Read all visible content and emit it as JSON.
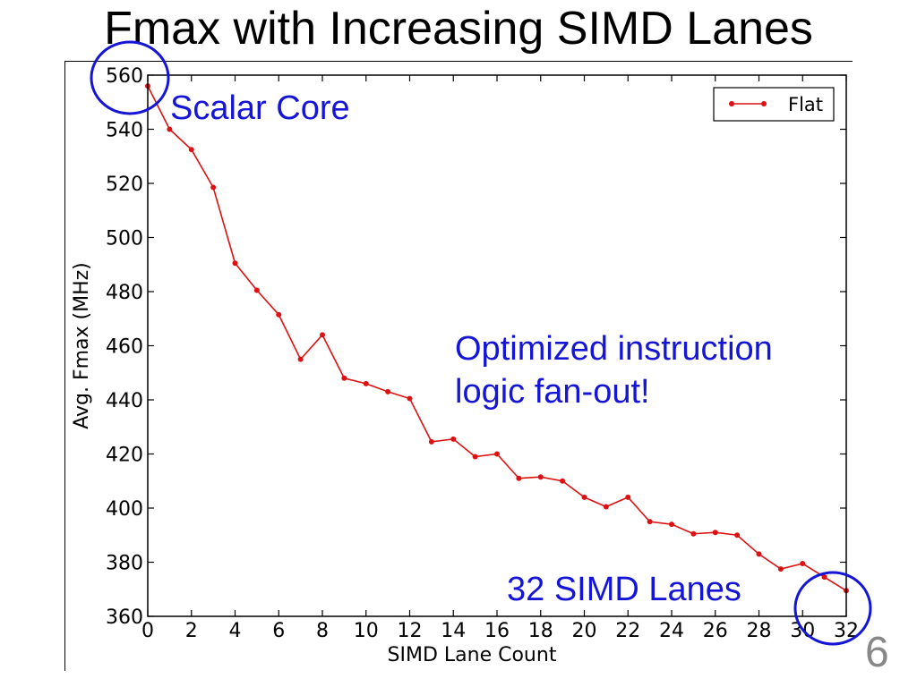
{
  "slide": {
    "title": "Fmax with Increasing SIMD Lanes",
    "page_number": "6"
  },
  "annotations": {
    "scalar_core": "Scalar Core",
    "optimized_line1": "Optimized instruction",
    "optimized_line2": "logic fan-out!",
    "simd_32": "32 SIMD Lanes",
    "circle_color": "#1515d6"
  },
  "chart_data": {
    "type": "line",
    "xlabel": "SIMD Lane Count",
    "ylabel": "Avg. Fmax (MHz)",
    "xlim": [
      0,
      32
    ],
    "ylim": [
      360,
      560
    ],
    "xticks": [
      0,
      2,
      4,
      6,
      8,
      10,
      12,
      14,
      16,
      18,
      20,
      22,
      24,
      26,
      28,
      30,
      32
    ],
    "yticks": [
      360,
      380,
      400,
      420,
      440,
      460,
      480,
      500,
      520,
      540,
      560
    ],
    "grid": false,
    "legend": {
      "position": "top-right",
      "entries": [
        "Flat"
      ]
    },
    "series": [
      {
        "name": "Flat",
        "color": "#dd1111",
        "x": [
          0,
          1,
          2,
          3,
          4,
          5,
          6,
          7,
          8,
          9,
          10,
          11,
          12,
          13,
          14,
          15,
          16,
          17,
          18,
          19,
          20,
          21,
          22,
          23,
          24,
          25,
          26,
          27,
          28,
          29,
          30,
          31,
          32
        ],
        "y": [
          556,
          540,
          532.5,
          518.5,
          490.5,
          480.5,
          471.5,
          455,
          464,
          448,
          446,
          443,
          440.5,
          424.5,
          425.5,
          419,
          420,
          411,
          411.5,
          410,
          404,
          400.5,
          404,
          395,
          394,
          390.5,
          391,
          390,
          383,
          377.5,
          379.5,
          374.5,
          369.5
        ]
      }
    ]
  }
}
